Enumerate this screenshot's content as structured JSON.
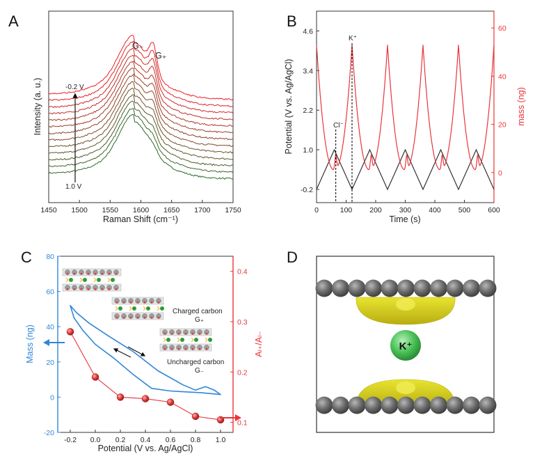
{
  "panels": {
    "A": "A",
    "B": "B",
    "C": "C",
    "D": "D"
  },
  "chart_data": [
    {
      "id": "A",
      "type": "line",
      "xlabel": "Raman Shift (cm⁻¹)",
      "ylabel": "Intensity (a. u.)",
      "xlim": [
        1450,
        1750
      ],
      "xticks": [
        1450,
        1500,
        1550,
        1600,
        1650,
        1700,
        1750
      ],
      "annotations": {
        "g_minus": "G₋",
        "g_plus": "G₊",
        "v_top": "-0.2 V",
        "v_bottom": "1.0 V"
      },
      "series_count": 13,
      "peaks": {
        "g_minus": 1590,
        "g_plus": 1620
      },
      "color_top": "#ee1c25",
      "color_bottom": "#2c6a2a"
    },
    {
      "id": "B",
      "type": "line",
      "xlabel": "Time (s)",
      "ylabel": "Potential (V vs. Ag/AgCl)",
      "y2label": "mass (ng)",
      "xlim": [
        0,
        600
      ],
      "xticks": [
        0,
        100,
        200,
        300,
        400,
        500,
        600
      ],
      "ylim": [
        -0.6,
        5.2
      ],
      "yticks": [
        -0.2,
        1.0,
        2.2,
        3.4,
        4.6
      ],
      "y2lim": [
        -12.5,
        67
      ],
      "y2ticks": [
        0,
        20,
        40,
        60
      ],
      "annotations": {
        "k_plus": "K⁺",
        "cl_minus": "Cl⁻"
      },
      "markers_x": [
        65,
        120
      ],
      "series": [
        {
          "name": "Potential",
          "color": "#333333",
          "x": [
            0,
            60,
            120,
            180,
            240,
            300,
            360,
            420,
            480,
            540,
            600
          ],
          "y": [
            -0.2,
            1.0,
            -0.2,
            1.0,
            -0.2,
            1.0,
            -0.2,
            1.0,
            -0.2,
            1.0,
            -0.2
          ]
        },
        {
          "name": "mass",
          "color": "#e8343a",
          "peaks_t": [
            0,
            120,
            240,
            360,
            480
          ],
          "peak_value": 53,
          "min_value": 1,
          "shoulder_value": 6,
          "period": 120
        }
      ]
    },
    {
      "id": "C",
      "type": "line",
      "xlabel": "Potential (V vs. Ag/AgCl)",
      "ylabel": "Mass (ng)",
      "y2label": "Aₗ₊/Aₗ₋",
      "xlim": [
        -0.3,
        1.1
      ],
      "xticks": [
        -0.2,
        0.0,
        0.2,
        0.4,
        0.6,
        0.8,
        1.0
      ],
      "ylim": [
        -20,
        80
      ],
      "yticks": [
        -20,
        0,
        20,
        40,
        60,
        80
      ],
      "y2lim": [
        0.08,
        0.43
      ],
      "y2ticks": [
        0.1,
        0.2,
        0.3,
        0.4
      ],
      "annotations": {
        "charged": "Charged carbon",
        "charged_g": "G₊",
        "uncharged": "Uncharged carbon",
        "uncharged_g": "G₋"
      },
      "series": [
        {
          "name": "Mass",
          "color": "#2f86d8",
          "loop": [
            [
              -0.2,
              52
            ],
            [
              -0.15,
              48
            ],
            [
              -0.05,
              42
            ],
            [
              0.1,
              35
            ],
            [
              0.3,
              26
            ],
            [
              0.5,
              15
            ],
            [
              0.7,
              7
            ],
            [
              0.8,
              4
            ],
            [
              0.88,
              6
            ],
            [
              0.95,
              4
            ],
            [
              1.0,
              1.5
            ],
            [
              0.85,
              2.5
            ],
            [
              0.6,
              3.5
            ],
            [
              0.45,
              5
            ],
            [
              0.3,
              13
            ],
            [
              0.15,
              22
            ],
            [
              0.0,
              30
            ],
            [
              -0.1,
              38
            ],
            [
              -0.17,
              45
            ],
            [
              -0.2,
              52
            ]
          ]
        },
        {
          "name": "ratio",
          "color": "#e8343a",
          "x": [
            -0.2,
            0.0,
            0.2,
            0.4,
            0.6,
            0.8,
            1.0
          ],
          "y": [
            0.28,
            0.19,
            0.15,
            0.147,
            0.14,
            0.112,
            0.105
          ]
        }
      ]
    },
    {
      "id": "D",
      "type": "diagram",
      "ion_label": "K⁺",
      "atom_color": "#6d6d6d",
      "ion_color": "#3fb64f",
      "density_color": "#d8d21e"
    }
  ]
}
